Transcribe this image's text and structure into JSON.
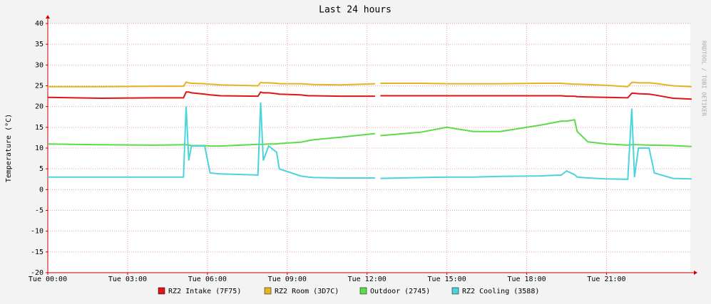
{
  "chart_data": {
    "type": "line",
    "title": "Last 24 hours",
    "y_label": "Temperature (°C)",
    "watermark": "RRDTOOL / TOBI OETIKER",
    "x": [
      0,
      2,
      4,
      5.1,
      5.2,
      5.3,
      5.4,
      5.9,
      6.1,
      6.5,
      7.9,
      8.0,
      8.1,
      8.3,
      8.6,
      8.7,
      9.5,
      9.8,
      10,
      11,
      12.3,
      12.4,
      12.5,
      14,
      15,
      16,
      17,
      18.5,
      19.3,
      19.5,
      19.8,
      19.9,
      20.3,
      21,
      21.8,
      21.95,
      22.05,
      22.2,
      22.6,
      22.8,
      23.5,
      24.2
    ],
    "xlim": [
      0,
      24.15
    ],
    "xticks": [
      {
        "value": 0,
        "label": "Tue 00:00"
      },
      {
        "value": 3,
        "label": "Tue 03:00"
      },
      {
        "value": 6,
        "label": "Tue 06:00"
      },
      {
        "value": 9,
        "label": "Tue 09:00"
      },
      {
        "value": 12,
        "label": "Tue 12:00"
      },
      {
        "value": 15,
        "label": "Tue 15:00"
      },
      {
        "value": 18,
        "label": "Tue 18:00"
      },
      {
        "value": 21,
        "label": "Tue 21:00"
      }
    ],
    "ylim": [
      -20,
      40
    ],
    "yticks": [
      40,
      35,
      30,
      25,
      20,
      15,
      10,
      5,
      0,
      -5,
      -10,
      -15,
      -20
    ],
    "grid": true,
    "series": [
      {
        "name": "RZ2 Intake (7F75)",
        "color": "#e21414",
        "values": [
          22.2,
          22,
          22.1,
          22.1,
          23.5,
          23.5,
          23.3,
          23,
          22.8,
          22.6,
          22.5,
          23.5,
          23.3,
          23.3,
          23.1,
          23,
          22.8,
          22.6,
          22.6,
          22.5,
          22.5,
          null,
          22.6,
          22.6,
          22.6,
          22.6,
          22.6,
          22.6,
          22.6,
          22.5,
          22.5,
          22.4,
          22.3,
          22.2,
          22.1,
          23.2,
          23.2,
          23.1,
          23,
          22.8,
          22,
          21.8
        ]
      },
      {
        "name": "RZ2 Room (3D7C)",
        "color": "#e6b422",
        "values": [
          24.8,
          24.8,
          24.9,
          24.9,
          25.9,
          25.7,
          25.6,
          25.5,
          25.4,
          25.2,
          25,
          25.8,
          25.7,
          25.7,
          25.6,
          25.5,
          25.5,
          25.4,
          25.3,
          25.2,
          25.5,
          null,
          25.6,
          25.6,
          25.5,
          25.5,
          25.5,
          25.6,
          25.6,
          25.5,
          25.4,
          25.4,
          25.3,
          25.1,
          24.8,
          25.8,
          25.8,
          25.7,
          25.7,
          25.6,
          25,
          24.8
        ]
      },
      {
        "name": "Outdoor (2745)",
        "color": "#5cdc48",
        "values": [
          11,
          10.8,
          10.7,
          10.8,
          10.8,
          10.7,
          10.6,
          10.6,
          10.5,
          10.5,
          10.9,
          10.9,
          10.9,
          11,
          11,
          11.1,
          11.4,
          11.8,
          12,
          12.6,
          13.5,
          null,
          13,
          13.8,
          15,
          14,
          14,
          15.5,
          16.5,
          16.5,
          16.8,
          14,
          11.5,
          11,
          10.7,
          10.8,
          10.8,
          10.8,
          10.7,
          10.7,
          10.6,
          10.4
        ]
      },
      {
        "name": "RZ2 Cooling (3588)",
        "color": "#4cd4dc",
        "values": [
          3,
          3,
          3,
          3,
          20,
          7,
          10.5,
          10.5,
          4,
          3.8,
          3.5,
          21,
          7,
          10.5,
          9,
          5,
          3.3,
          3,
          2.9,
          2.8,
          2.8,
          null,
          2.7,
          2.9,
          3,
          3,
          3.2,
          3.3,
          3.5,
          4.5,
          3.6,
          3,
          2.8,
          2.6,
          2.5,
          19.5,
          3,
          10,
          10,
          4,
          2.7,
          2.6
        ]
      }
    ]
  }
}
